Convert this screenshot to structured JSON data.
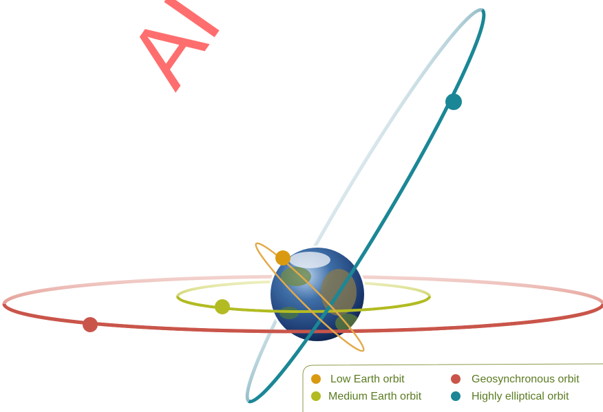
{
  "watermark": "AI",
  "legend": {
    "items": [
      {
        "label": "Low Earth orbit"
      },
      {
        "label": "Geosynchronous orbit"
      },
      {
        "label": "Medium Earth orbit"
      },
      {
        "label": "Highly elliptical orbit"
      }
    ]
  }
}
